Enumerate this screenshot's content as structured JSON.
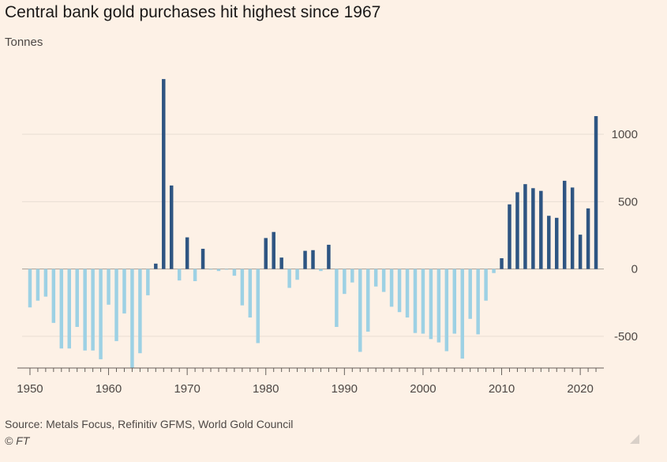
{
  "title": "Central bank gold purchases hit highest since 1967",
  "subtitle": "Tonnes",
  "footer": {
    "source": "Source: Metals Focus, Refinitiv GFMS, World Gold Council",
    "credit": "© FT"
  },
  "colors": {
    "positive": "#2e5582",
    "negative": "#9dd1e4",
    "background": "#fdf1e6",
    "grid": "#e8ddd3",
    "axis_text": "#4d4845",
    "zero_line": "#a89f97"
  },
  "chart_data": {
    "type": "bar",
    "title": "Central bank gold purchases hit highest since 1967",
    "ylabel": "Tonnes",
    "ylim": [
      -735,
      1440
    ],
    "xlim": [
      1949,
      2023
    ],
    "x_ticks": [
      1950,
      1960,
      1970,
      1980,
      1990,
      2000,
      2010,
      2020
    ],
    "y_ticks": [
      -500,
      0,
      500,
      1000
    ],
    "y_tick_labels": [
      "-500",
      "0",
      "500",
      "1000"
    ],
    "grid": true,
    "y_axis_side": "right",
    "years": [
      1950,
      1951,
      1952,
      1953,
      1954,
      1955,
      1956,
      1957,
      1958,
      1959,
      1960,
      1961,
      1962,
      1963,
      1964,
      1965,
      1966,
      1967,
      1968,
      1969,
      1970,
      1971,
      1972,
      1973,
      1974,
      1975,
      1976,
      1977,
      1978,
      1979,
      1980,
      1981,
      1982,
      1983,
      1984,
      1985,
      1986,
      1987,
      1988,
      1989,
      1990,
      1991,
      1992,
      1993,
      1994,
      1995,
      1996,
      1997,
      1998,
      1999,
      2000,
      2001,
      2002,
      2003,
      2004,
      2005,
      2006,
      2007,
      2008,
      2009,
      2010,
      2011,
      2012,
      2013,
      2014,
      2015,
      2016,
      2017,
      2018,
      2019,
      2020,
      2021,
      2022
    ],
    "values": [
      -285,
      -235,
      -205,
      -400,
      -590,
      -590,
      -430,
      -605,
      -605,
      -670,
      -265,
      -535,
      -330,
      -735,
      -625,
      -195,
      40,
      1410,
      620,
      -85,
      235,
      -90,
      150,
      -5,
      -15,
      -5,
      -50,
      -270,
      -360,
      -550,
      230,
      275,
      85,
      -140,
      -80,
      135,
      140,
      -15,
      180,
      -430,
      -185,
      -100,
      -615,
      -465,
      -130,
      -170,
      -280,
      -320,
      -360,
      -475,
      -480,
      -520,
      -545,
      -610,
      -480,
      -665,
      -370,
      -485,
      -235,
      -30,
      80,
      480,
      570,
      630,
      600,
      580,
      395,
      380,
      655,
      605,
      255,
      450,
      1135
    ]
  }
}
